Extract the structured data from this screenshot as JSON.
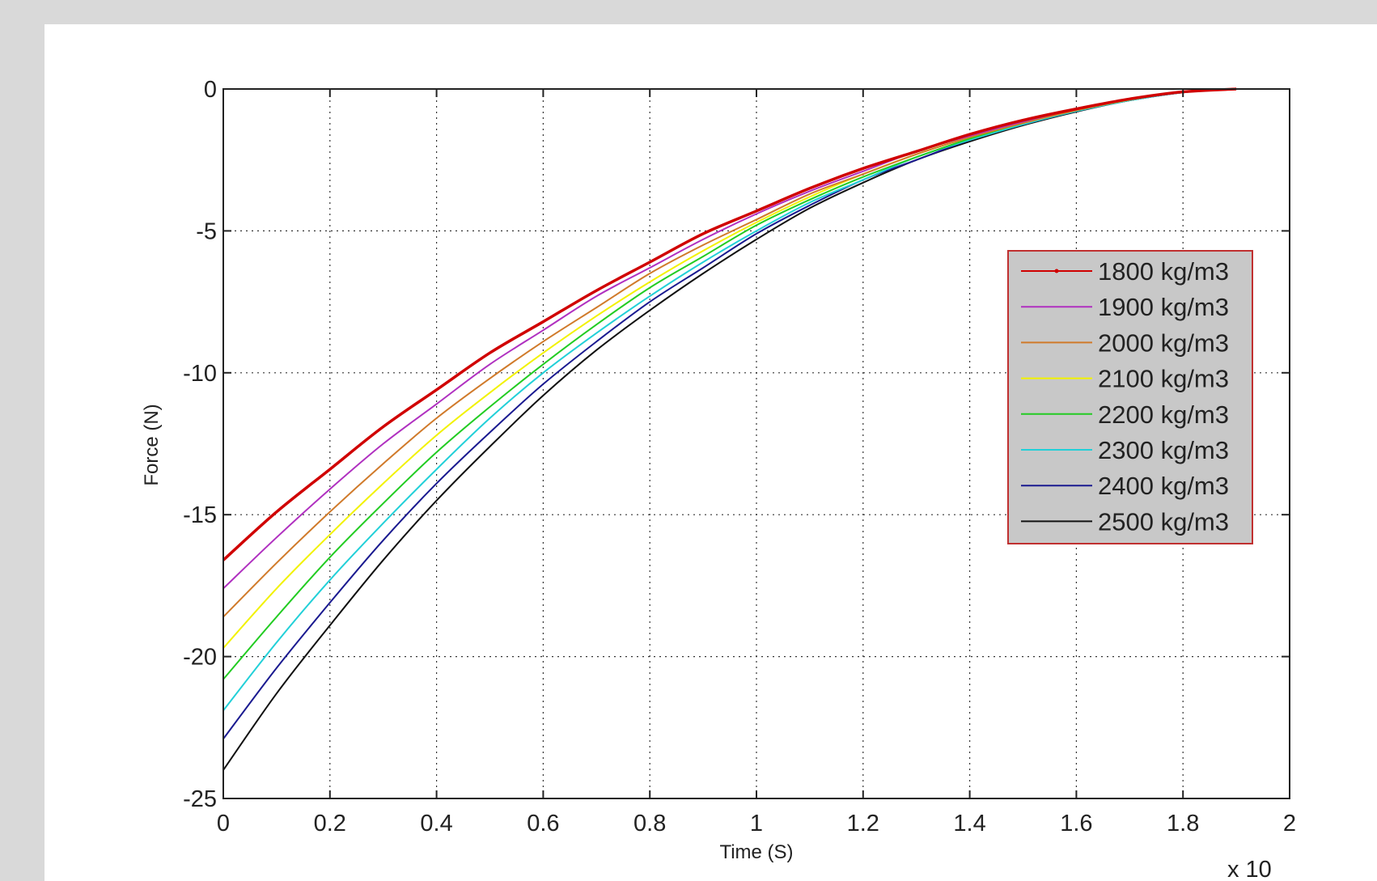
{
  "chart_data": {
    "type": "line",
    "title": "",
    "xlabel": "Time (S)",
    "ylabel": "Force (N)",
    "x_multiplier_label": "x 10",
    "xlim": [
      0,
      2
    ],
    "ylim": [
      -25,
      0
    ],
    "xticks": [
      "0",
      "0.2",
      "0.4",
      "0.6",
      "0.8",
      "1",
      "1.2",
      "1.4",
      "1.6",
      "1.8",
      "2"
    ],
    "yticks": [
      "0",
      "-5",
      "-10",
      "-15",
      "-20",
      "-25"
    ],
    "grid": true,
    "legend_position": "right",
    "x": [
      0,
      0.1,
      0.2,
      0.3,
      0.4,
      0.5,
      0.6,
      0.7,
      0.8,
      0.9,
      1.0,
      1.1,
      1.2,
      1.3,
      1.4,
      1.5,
      1.6,
      1.7,
      1.8,
      1.9
    ],
    "series": [
      {
        "name": "1800 kg/m3",
        "color": "#d00000",
        "width": 3.5,
        "marker": true,
        "values": [
          -16.6,
          -14.9,
          -13.4,
          -11.9,
          -10.6,
          -9.3,
          -8.2,
          -7.1,
          -6.1,
          -5.1,
          -4.3,
          -3.5,
          -2.8,
          -2.2,
          -1.6,
          -1.1,
          -0.7,
          -0.35,
          -0.1,
          0
        ]
      },
      {
        "name": "1900 kg/m3",
        "color": "#b030c0",
        "width": 2,
        "values": [
          -17.6,
          -15.8,
          -14.1,
          -12.5,
          -11.1,
          -9.7,
          -8.5,
          -7.3,
          -6.3,
          -5.3,
          -4.4,
          -3.6,
          -2.9,
          -2.2,
          -1.65,
          -1.15,
          -0.7,
          -0.35,
          -0.1,
          0
        ]
      },
      {
        "name": "2000 kg/m3",
        "color": "#d07a2a",
        "width": 2,
        "values": [
          -18.6,
          -16.7,
          -14.9,
          -13.2,
          -11.6,
          -10.2,
          -8.9,
          -7.7,
          -6.5,
          -5.5,
          -4.6,
          -3.7,
          -3.0,
          -2.3,
          -1.7,
          -1.2,
          -0.75,
          -0.37,
          -0.1,
          0
        ]
      },
      {
        "name": "2100 kg/m3",
        "color": "#f2f200",
        "width": 2,
        "values": [
          -19.7,
          -17.6,
          -15.7,
          -13.9,
          -12.2,
          -10.7,
          -9.3,
          -8.0,
          -6.8,
          -5.7,
          -4.7,
          -3.8,
          -3.0,
          -2.3,
          -1.7,
          -1.2,
          -0.75,
          -0.38,
          -0.1,
          0
        ]
      },
      {
        "name": "2200 kg/m3",
        "color": "#22cc22",
        "width": 2,
        "values": [
          -20.8,
          -18.6,
          -16.5,
          -14.6,
          -12.8,
          -11.2,
          -9.7,
          -8.3,
          -7.0,
          -5.9,
          -4.8,
          -3.9,
          -3.1,
          -2.4,
          -1.75,
          -1.2,
          -0.75,
          -0.38,
          -0.1,
          0
        ]
      },
      {
        "name": "2300 kg/m3",
        "color": "#22d0d8",
        "width": 2,
        "values": [
          -21.9,
          -19.5,
          -17.3,
          -15.3,
          -13.4,
          -11.6,
          -10.0,
          -8.6,
          -7.3,
          -6.1,
          -5.0,
          -4.0,
          -3.2,
          -2.4,
          -1.8,
          -1.25,
          -0.78,
          -0.4,
          -0.12,
          0
        ]
      },
      {
        "name": "2400 kg/m3",
        "color": "#1a1a90",
        "width": 2,
        "values": [
          -22.9,
          -20.4,
          -18.1,
          -15.9,
          -13.9,
          -12.1,
          -10.4,
          -8.9,
          -7.5,
          -6.3,
          -5.1,
          -4.1,
          -3.2,
          -2.5,
          -1.8,
          -1.25,
          -0.78,
          -0.4,
          -0.12,
          0
        ]
      },
      {
        "name": "2500 kg/m3",
        "color": "#111111",
        "width": 2,
        "values": [
          -24.0,
          -21.3,
          -18.9,
          -16.6,
          -14.5,
          -12.6,
          -10.8,
          -9.2,
          -7.8,
          -6.5,
          -5.3,
          -4.2,
          -3.3,
          -2.5,
          -1.85,
          -1.28,
          -0.8,
          -0.4,
          -0.12,
          0
        ]
      }
    ]
  }
}
